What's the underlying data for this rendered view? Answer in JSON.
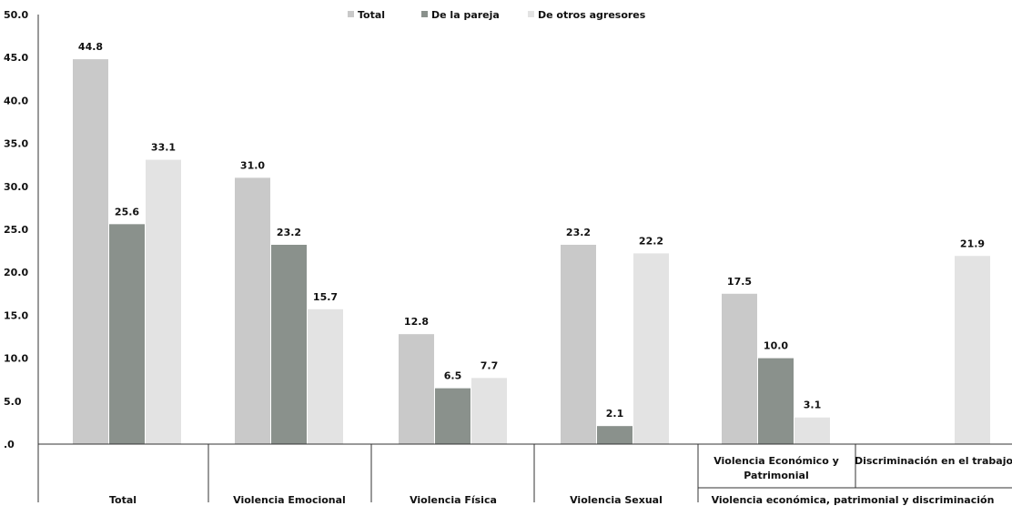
{
  "chart_data": {
    "type": "bar",
    "legend_position": "top",
    "grid": false,
    "ylim": [
      0,
      50
    ],
    "y_ticks": [
      "50.0",
      "45.0",
      "40.0",
      "35.0",
      "30.0",
      "25.0",
      "20.0",
      "15.0",
      "10.0",
      "5.0",
      ".0"
    ],
    "series": [
      {
        "name": "Total",
        "color": "#c9c9c9"
      },
      {
        "name": "De la pareja",
        "color": "#8a918c"
      },
      {
        "name": "De otros agresores",
        "color": "#e3e3e3"
      }
    ],
    "groups": [
      {
        "category": "Total",
        "values": [
          44.8,
          25.6,
          33.1
        ],
        "labels": [
          "44.8",
          "25.6",
          "33.1"
        ]
      },
      {
        "category": "Violencia Emocional",
        "values": [
          31.0,
          23.2,
          15.7
        ],
        "labels": [
          "31.0",
          "23.2",
          "15.7"
        ]
      },
      {
        "category": "Violencia Física",
        "values": [
          12.8,
          6.5,
          7.7
        ],
        "labels": [
          "12.8",
          "6.5",
          "7.7"
        ]
      },
      {
        "category": "Violencia Sexual",
        "values": [
          23.2,
          2.1,
          22.2
        ],
        "labels": [
          "23.2",
          "2.1",
          "22.2"
        ]
      },
      {
        "category": "Violencia Económico y Patrimonial",
        "values": [
          17.5,
          10.0,
          3.1
        ],
        "labels": [
          "17.5",
          "10.0",
          "3.1"
        ]
      },
      {
        "category": "Discriminación en el trabajo",
        "values": [
          null,
          null,
          21.9
        ],
        "labels": [
          "",
          "",
          "21.9"
        ]
      }
    ],
    "category_labels_level1": {
      "economico_line1": "Violencia Económico y",
      "economico_line2": "Patrimonial",
      "discriminacion": "Discriminación en el trabajo"
    },
    "category_labels_level2": [
      "Total",
      "Violencia Emocional",
      "Violencia Física",
      "Violencia Sexual",
      "Violencia económica, patrimonial y discriminación"
    ]
  }
}
